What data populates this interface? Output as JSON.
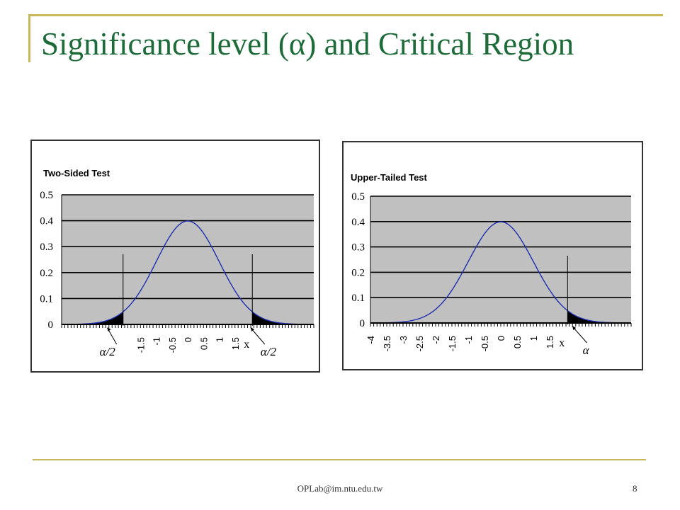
{
  "slide": {
    "title": "Significance level (α) and Critical Region",
    "footer": "OPLab@im.ntu.edu.tw",
    "page_number": "8"
  },
  "colors": {
    "title": "#1e6b3a",
    "frame": "#c9b85a",
    "plot_bg": "#c0c0c0",
    "curve": "#1f2fb0",
    "shade": "#000000"
  },
  "chart_data": [
    {
      "type": "line",
      "title": "Two-Sided Test",
      "xlabel": "x",
      "x_range": [
        -4,
        4
      ],
      "ylim": [
        0,
        0.5
      ],
      "y_ticks": [
        "0",
        "0.1",
        "0.2",
        "0.3",
        "0.4",
        "0.5"
      ],
      "x_ticks": [
        "-1.5",
        "-1",
        "-0.5",
        "0",
        "0.5",
        "1",
        "1.5"
      ],
      "x_tick_values": [
        -1.5,
        -1,
        -0.5,
        0,
        0.5,
        1,
        1.5
      ],
      "grid": true,
      "series": [
        {
          "distribution": "standard normal",
          "mean": 0,
          "sd": 1,
          "peak": 0.4
        }
      ],
      "critical_values": [
        -2.05,
        2.05
      ],
      "shaded_tails": [
        "left",
        "right"
      ],
      "annotations": [
        {
          "text": "α/2",
          "x": -2.3
        },
        {
          "text": "α/2",
          "x": 2.4
        }
      ]
    },
    {
      "type": "line",
      "title": "Upper-Tailed Test",
      "xlabel": "x",
      "x_range": [
        -4,
        4
      ],
      "ylim": [
        0,
        0.5
      ],
      "y_ticks": [
        "0",
        "0.1",
        "0.2",
        "0.3",
        "0.4",
        "0.5"
      ],
      "x_ticks": [
        "-4",
        "-3.5",
        "-3",
        "-2.5",
        "-2",
        "-1.5",
        "-1",
        "-0.5",
        "0",
        "0.5",
        "1",
        "1.5"
      ],
      "x_tick_values": [
        -4,
        -3.5,
        -3,
        -2.5,
        -2,
        -1.5,
        -1,
        -0.5,
        0,
        0.5,
        1,
        1.5
      ],
      "grid": true,
      "series": [
        {
          "distribution": "standard normal",
          "mean": 0,
          "sd": 1,
          "peak": 0.4
        }
      ],
      "critical_values": [
        2.05
      ],
      "shaded_tails": [
        "right"
      ],
      "annotations": [
        {
          "text": "α",
          "x": 2.6
        }
      ]
    }
  ]
}
